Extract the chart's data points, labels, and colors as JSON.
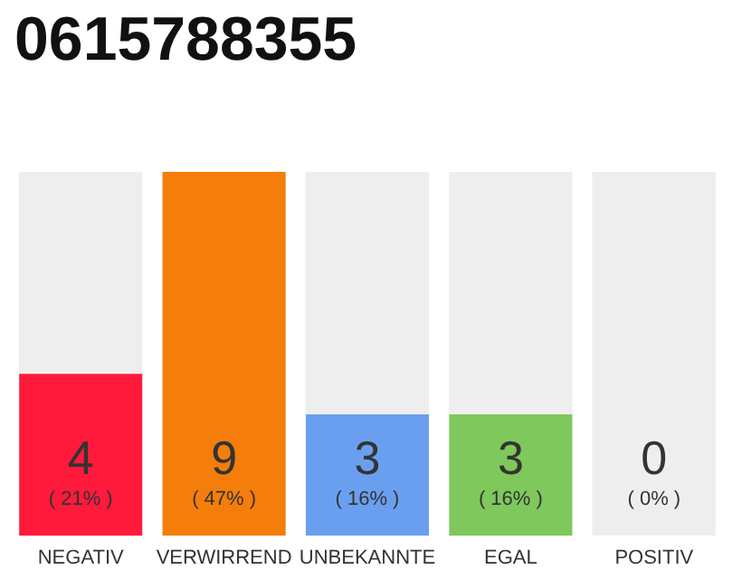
{
  "chart_data": {
    "type": "bar",
    "title": "0615788355",
    "categories": [
      "NEGATIV",
      "VERWIRREND",
      "UNBEKANNTE",
      "EGAL",
      "POSITIV"
    ],
    "values": [
      4,
      9,
      3,
      3,
      0
    ],
    "colors": [
      "#ff1a3c",
      "#f57d0a",
      "#6a9ff0",
      "#7ec85c",
      "#cccccc"
    ],
    "value_labels": [
      "4\n( 21% )",
      "9\n( 47% )",
      "3\n( 16% )",
      "3\n( 16% )",
      "0\n( 0% )"
    ]
  }
}
